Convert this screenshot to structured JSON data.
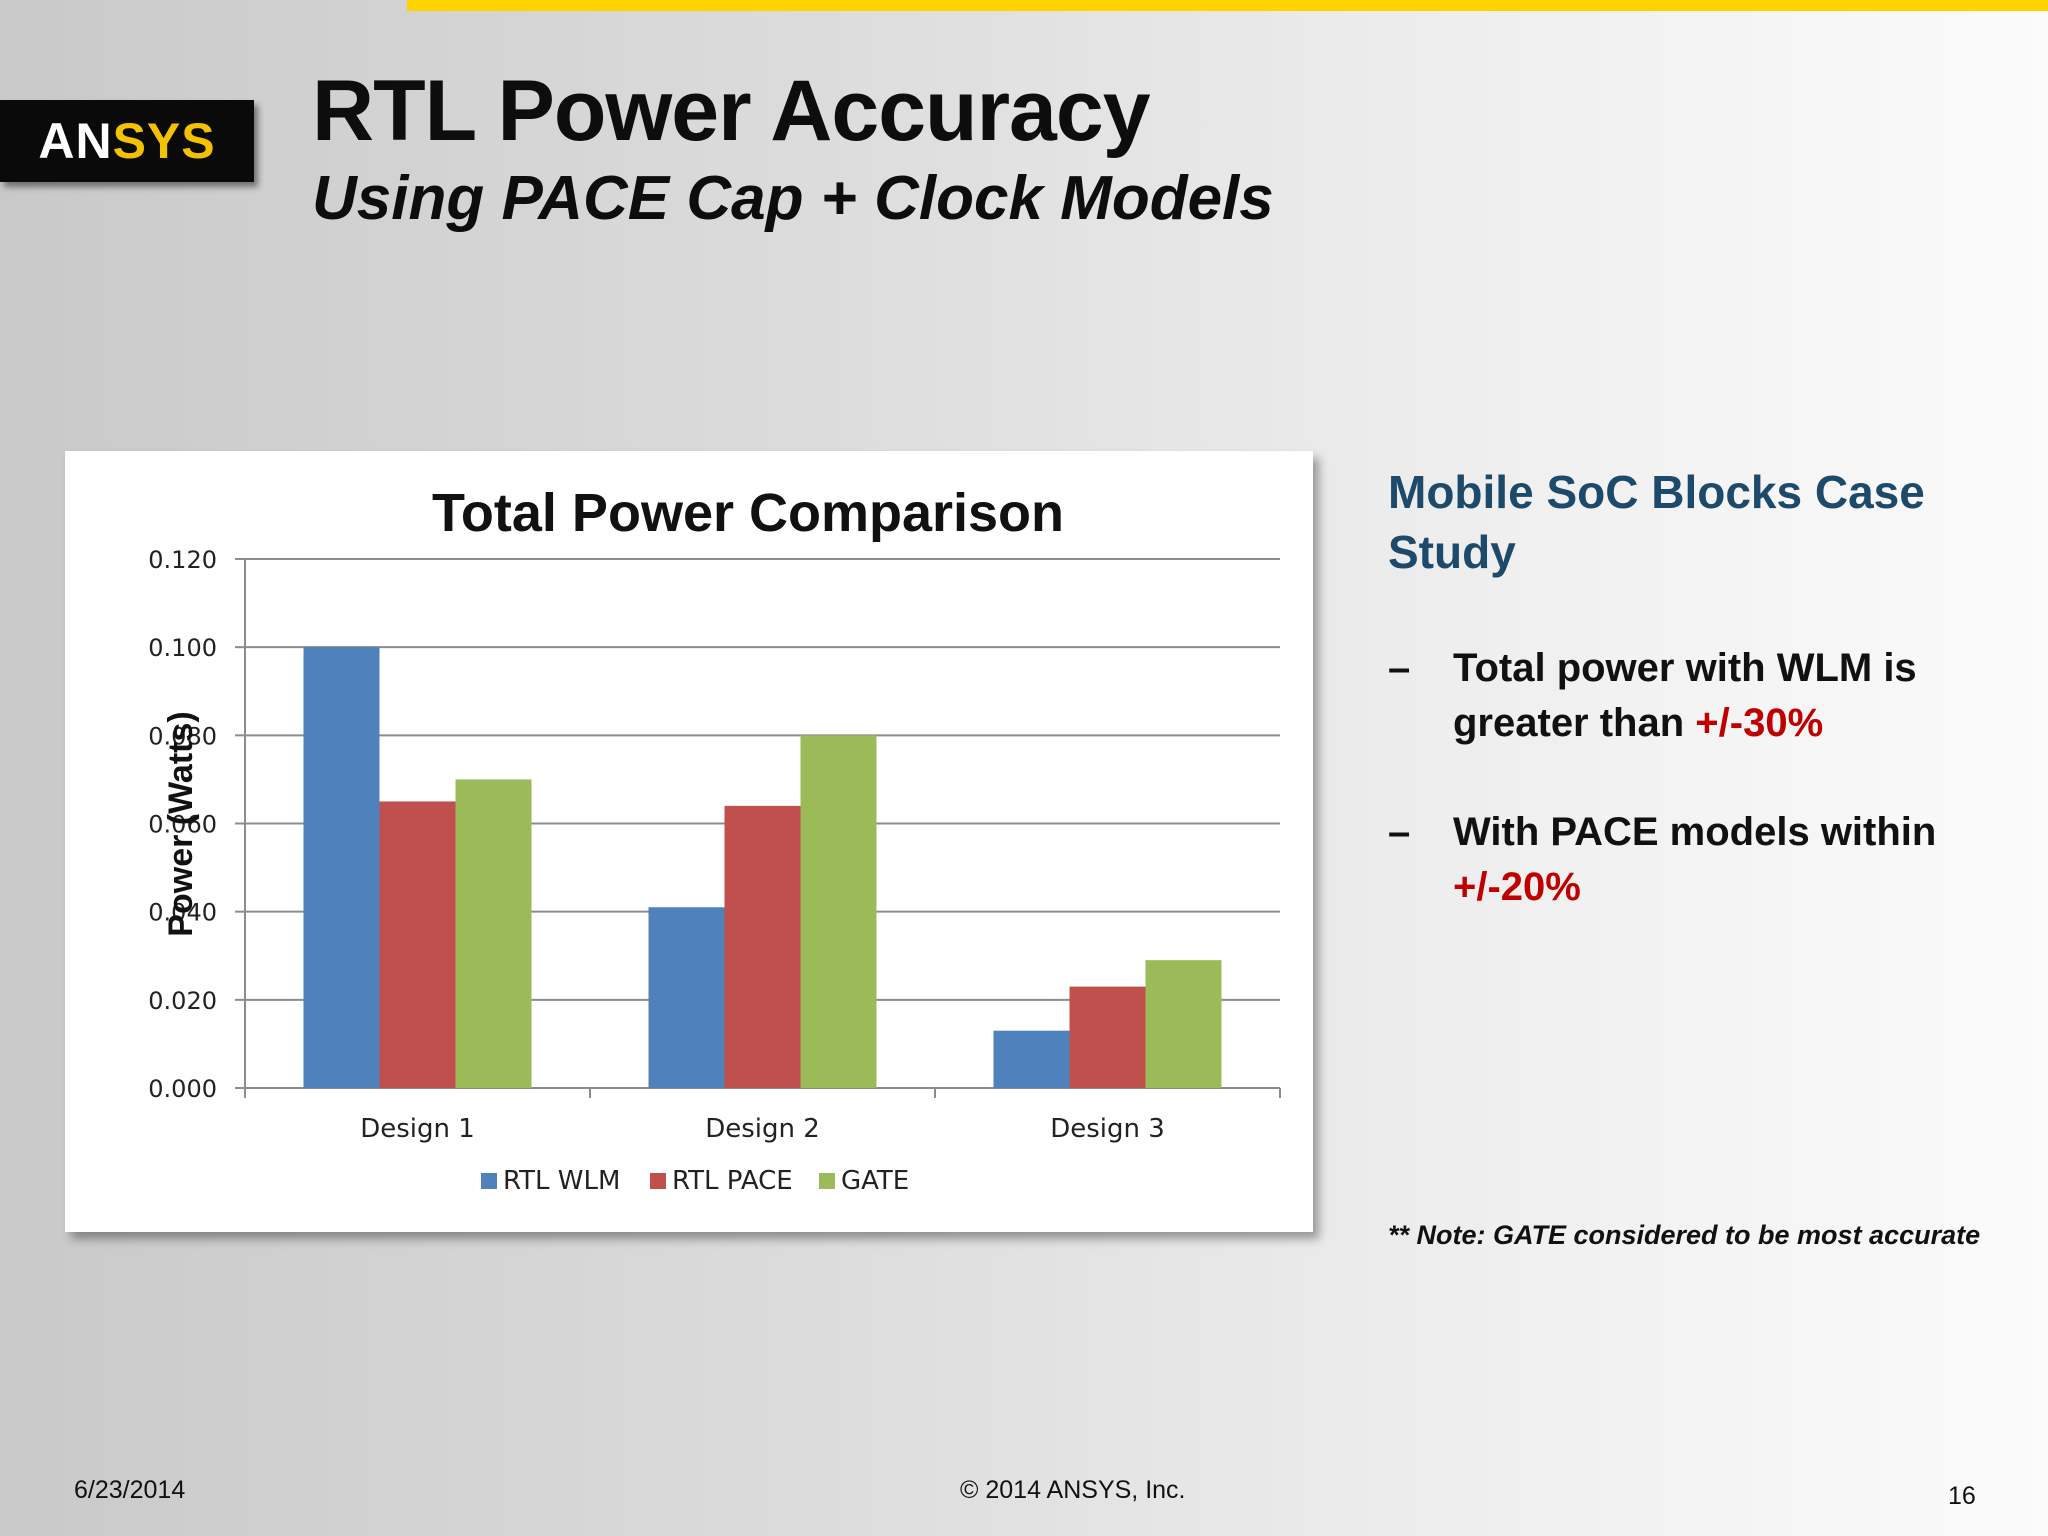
{
  "slide": {
    "logo_text_a": "AN",
    "logo_text_b": "SYS",
    "title": "RTL Power Accuracy",
    "subtitle": "Using PACE Cap + Clock Models"
  },
  "sidebar": {
    "heading": "Mobile SoC Blocks Case Study",
    "bullets": [
      {
        "dash": "–",
        "text": "Total power with WLM is greater than ",
        "highlight": "+/-30%"
      },
      {
        "dash": "–",
        "text": "With PACE models within ",
        "highlight": "+/-20%"
      }
    ],
    "note": "** Note: GATE considered to be most accurate"
  },
  "footer": {
    "date": "6/23/2014",
    "copyright": "© 2014 ANSYS, Inc.",
    "page_number": "16"
  },
  "colors": {
    "accent_bar": "#ffd200",
    "heading_blue": "#1d4a6b",
    "highlight_red": "#c00000"
  },
  "chart_data": {
    "type": "bar",
    "title": "Total Power Comparison",
    "xlabel": "",
    "ylabel": "Power (Watts)",
    "categories": [
      "Design 1",
      "Design 2",
      "Design 3"
    ],
    "series": [
      {
        "name": "RTL WLM",
        "color": "#4f81bd",
        "values": [
          0.1,
          0.041,
          0.013
        ]
      },
      {
        "name": "RTL PACE",
        "color": "#c0504d",
        "values": [
          0.065,
          0.064,
          0.023
        ]
      },
      {
        "name": "GATE",
        "color": "#9bbb59",
        "values": [
          0.07,
          0.08,
          0.029
        ]
      }
    ],
    "ylim": [
      0,
      0.12
    ],
    "yticks": [
      0,
      0.02,
      0.04,
      0.06,
      0.08,
      0.1,
      0.12
    ],
    "ytick_labels": [
      "0.000",
      "0.020",
      "0.040",
      "0.060",
      "0.080",
      "0.100",
      "0.120"
    ],
    "grid": true,
    "legend_position": "bottom"
  }
}
